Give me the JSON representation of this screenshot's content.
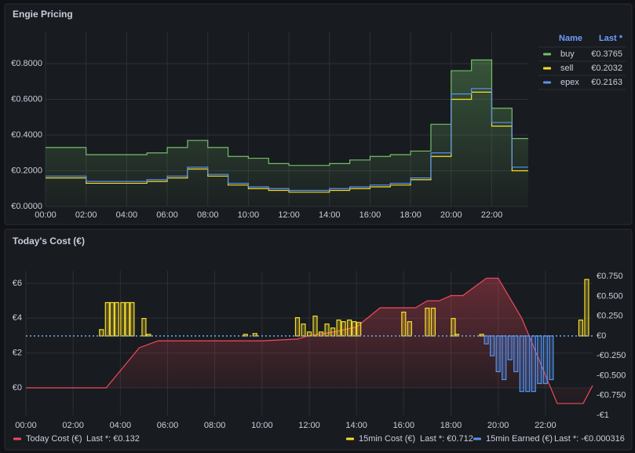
{
  "chart_data": [
    {
      "type": "line",
      "title": "Engie Pricing",
      "step": true,
      "grid": true,
      "x": [
        0,
        1,
        2,
        3,
        4,
        5,
        6,
        7,
        8,
        9,
        10,
        11,
        12,
        13,
        14,
        15,
        16,
        17,
        18,
        19,
        20,
        21,
        22,
        23
      ],
      "xlim": [
        0,
        23.8
      ],
      "xticks": [
        {
          "value": 0,
          "label": "00:00"
        },
        {
          "value": 2,
          "label": "02:00"
        },
        {
          "value": 4,
          "label": "04:00"
        },
        {
          "value": 6,
          "label": "06:00"
        },
        {
          "value": 8,
          "label": "08:00"
        },
        {
          "value": 10,
          "label": "10:00"
        },
        {
          "value": 12,
          "label": "12:00"
        },
        {
          "value": 14,
          "label": "14:00"
        },
        {
          "value": 16,
          "label": "16:00"
        },
        {
          "value": 18,
          "label": "18:00"
        },
        {
          "value": 20,
          "label": "20:00"
        },
        {
          "value": 22,
          "label": "22:00"
        }
      ],
      "ylim": [
        0,
        0.98
      ],
      "yticks": [
        {
          "value": 0,
          "label": "€0.0000"
        },
        {
          "value": 0.2,
          "label": "€0.2000"
        },
        {
          "value": 0.4,
          "label": "€0.4000"
        },
        {
          "value": 0.6,
          "label": "€0.6000"
        },
        {
          "value": 0.8,
          "label": "€0.8000"
        }
      ],
      "legend": {
        "placement": "right",
        "columns": [
          "Name",
          "Last *"
        ]
      },
      "series": [
        {
          "name": "buy",
          "color": "#73bf69",
          "fill": true,
          "legend_value": "€0.3765",
          "values": [
            0.33,
            0.33,
            0.29,
            0.29,
            0.29,
            0.3,
            0.33,
            0.37,
            0.33,
            0.28,
            0.27,
            0.24,
            0.23,
            0.23,
            0.24,
            0.26,
            0.28,
            0.29,
            0.31,
            0.46,
            0.76,
            0.82,
            0.55,
            0.38
          ]
        },
        {
          "name": "sell",
          "color": "#fade2a",
          "legend_value": "€0.2032",
          "values": [
            0.16,
            0.16,
            0.13,
            0.13,
            0.13,
            0.14,
            0.16,
            0.21,
            0.17,
            0.12,
            0.1,
            0.09,
            0.08,
            0.08,
            0.09,
            0.1,
            0.11,
            0.12,
            0.15,
            0.28,
            0.6,
            0.64,
            0.45,
            0.2
          ]
        },
        {
          "name": "epex",
          "color": "#5794f2",
          "legend_value": "€0.2163",
          "values": [
            0.17,
            0.17,
            0.14,
            0.14,
            0.14,
            0.15,
            0.17,
            0.22,
            0.18,
            0.13,
            0.11,
            0.1,
            0.09,
            0.09,
            0.1,
            0.11,
            0.12,
            0.13,
            0.16,
            0.3,
            0.63,
            0.66,
            0.47,
            0.22
          ]
        }
      ]
    },
    {
      "type": "line",
      "title": "Today's Cost (€)",
      "step": false,
      "grid": true,
      "xlim": [
        0,
        24
      ],
      "xticks": [
        {
          "value": 0,
          "label": "00:00"
        },
        {
          "value": 2,
          "label": "02:00"
        },
        {
          "value": 4,
          "label": "04:00"
        },
        {
          "value": 6,
          "label": "06:00"
        },
        {
          "value": 8,
          "label": "08:00"
        },
        {
          "value": 10,
          "label": "10:00"
        },
        {
          "value": 12,
          "label": "12:00"
        },
        {
          "value": 14,
          "label": "14:00"
        },
        {
          "value": 16,
          "label": "16:00"
        },
        {
          "value": 18,
          "label": "18:00"
        },
        {
          "value": 20,
          "label": "20:00"
        },
        {
          "value": 22,
          "label": "22:00"
        }
      ],
      "ylim": [
        -1.58,
        6.72
      ],
      "yticks": [
        {
          "value": 0,
          "label": "€0"
        },
        {
          "value": 2,
          "label": "€2"
        },
        {
          "value": 4,
          "label": "€4"
        },
        {
          "value": 6,
          "label": "€6"
        }
      ],
      "y2lim": [
        -1,
        0.82
      ],
      "y2ticks": [
        {
          "value": -1,
          "label": "-€1"
        },
        {
          "value": -0.75,
          "label": "-€0.750"
        },
        {
          "value": -0.5,
          "label": "-€0.500"
        },
        {
          "value": -0.25,
          "label": "-€0.250"
        },
        {
          "value": 0,
          "label": "€0"
        },
        {
          "value": 0.25,
          "label": "€0.250"
        },
        {
          "value": 0.5,
          "label": "€0.500"
        },
        {
          "value": 0.75,
          "label": "€0.750"
        }
      ],
      "legend": {
        "placement": "bottom"
      },
      "series": [
        {
          "name": "Today Cost (€)",
          "color": "#f2495c",
          "fill": true,
          "kind": "line",
          "legend_label": "Last *: €0.132",
          "x": [
            0,
            3.4,
            4.8,
            5.6,
            10,
            11.5,
            12,
            13,
            14,
            15,
            16.5,
            17,
            17.5,
            18,
            18.5,
            19.5,
            20,
            21,
            22.5,
            23.6,
            24
          ],
          "values": [
            0,
            0,
            2.3,
            2.7,
            2.7,
            2.8,
            3.0,
            3.2,
            3.5,
            4.6,
            4.6,
            5.0,
            5.0,
            5.3,
            5.3,
            6.3,
            6.3,
            4.0,
            -0.9,
            -0.9,
            0.132
          ]
        },
        {
          "name": "15min Cost (€)",
          "color": "#fade2a",
          "kind": "bar",
          "axis": "y2",
          "legend_label": "Last *: €0.712",
          "x": [
            3.2,
            3.45,
            3.65,
            3.85,
            4.1,
            4.3,
            4.5,
            5.0,
            5.2,
            9.3,
            9.7,
            11.5,
            11.75,
            12.0,
            12.25,
            12.5,
            12.75,
            13.0,
            13.25,
            13.45,
            13.7,
            13.9,
            14.1,
            16.0,
            16.25,
            17.0,
            17.25,
            18.1,
            18.25,
            19.3,
            23.5,
            23.75
          ],
          "values": [
            0.08,
            0.42,
            0.42,
            0.42,
            0.42,
            0.42,
            0.42,
            0.22,
            0.02,
            0.02,
            0.03,
            0.23,
            0.15,
            0.05,
            0.25,
            0.05,
            0.15,
            0.1,
            0.2,
            0.18,
            0.2,
            0.18,
            0.17,
            0.3,
            0.18,
            0.35,
            0.35,
            0.22,
            0.02,
            0.02,
            0.2,
            0.712
          ]
        },
        {
          "name": "15min Earned (€)",
          "color": "#5794f2",
          "kind": "bar",
          "axis": "y2",
          "legend_label": "Last *: -€0.000316",
          "x": [
            19.5,
            19.75,
            20.0,
            20.25,
            20.5,
            20.75,
            21.0,
            21.25,
            21.5,
            21.75,
            22.0,
            22.25
          ],
          "values": [
            -0.1,
            -0.25,
            -0.45,
            -0.55,
            -0.3,
            -0.45,
            -0.7,
            -0.7,
            -0.7,
            -0.6,
            -0.6,
            -0.55
          ]
        }
      ]
    }
  ]
}
